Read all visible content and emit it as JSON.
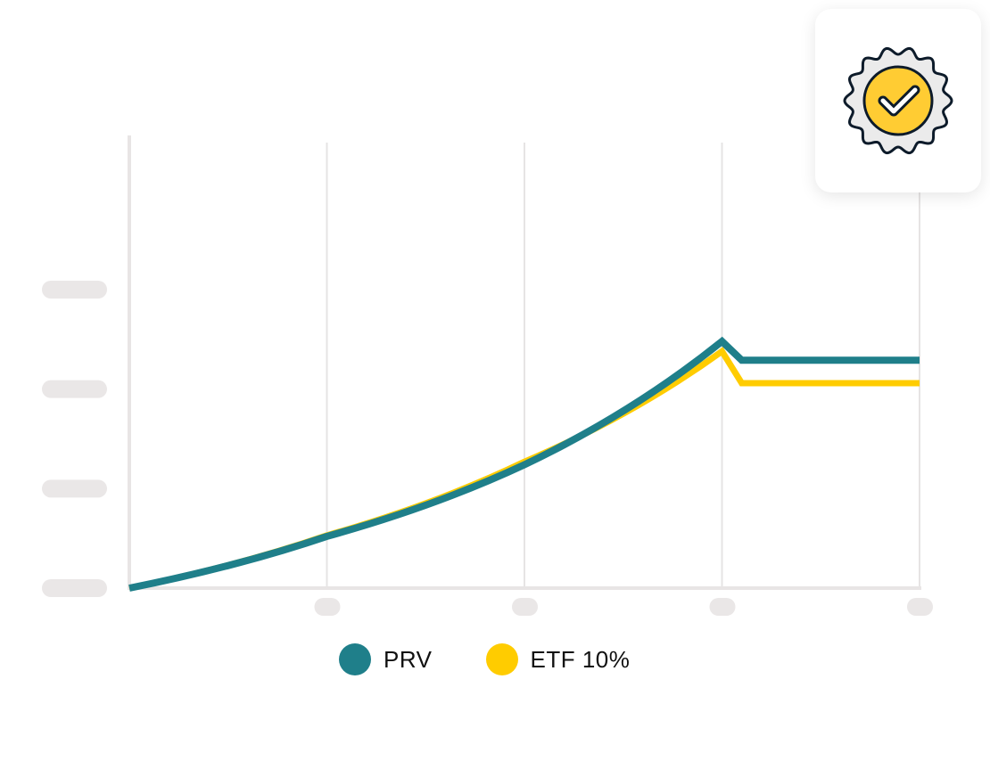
{
  "chart_data": {
    "type": "line",
    "title": "",
    "xlabel": "",
    "ylabel": "",
    "x": [
      0,
      1,
      2,
      3,
      3.1,
      4
    ],
    "xlim": [
      0,
      4
    ],
    "ylim": [
      0,
      3
    ],
    "grid": "vertical",
    "tick_labels_visible": false,
    "legend_position": "bottom-center",
    "series": [
      {
        "name": "PRV",
        "color": "#1F7F8A",
        "values": [
          0,
          0.52,
          1.24,
          2.48,
          2.29,
          2.29
        ]
      },
      {
        "name": "ETF 10%",
        "color": "#FFCC00",
        "values": [
          0,
          0.53,
          1.27,
          2.38,
          2.06,
          2.06
        ]
      }
    ]
  },
  "colors": {
    "axis": "#E8E5E5",
    "grid": "#E6E4E4",
    "placeholder": "#EAE7E7"
  },
  "badge": {
    "icon": "verified-seal-check-icon",
    "colors": {
      "fill": "#FFCC33",
      "outline": "#0D1B2A",
      "seal": "#EBEBEB"
    }
  }
}
